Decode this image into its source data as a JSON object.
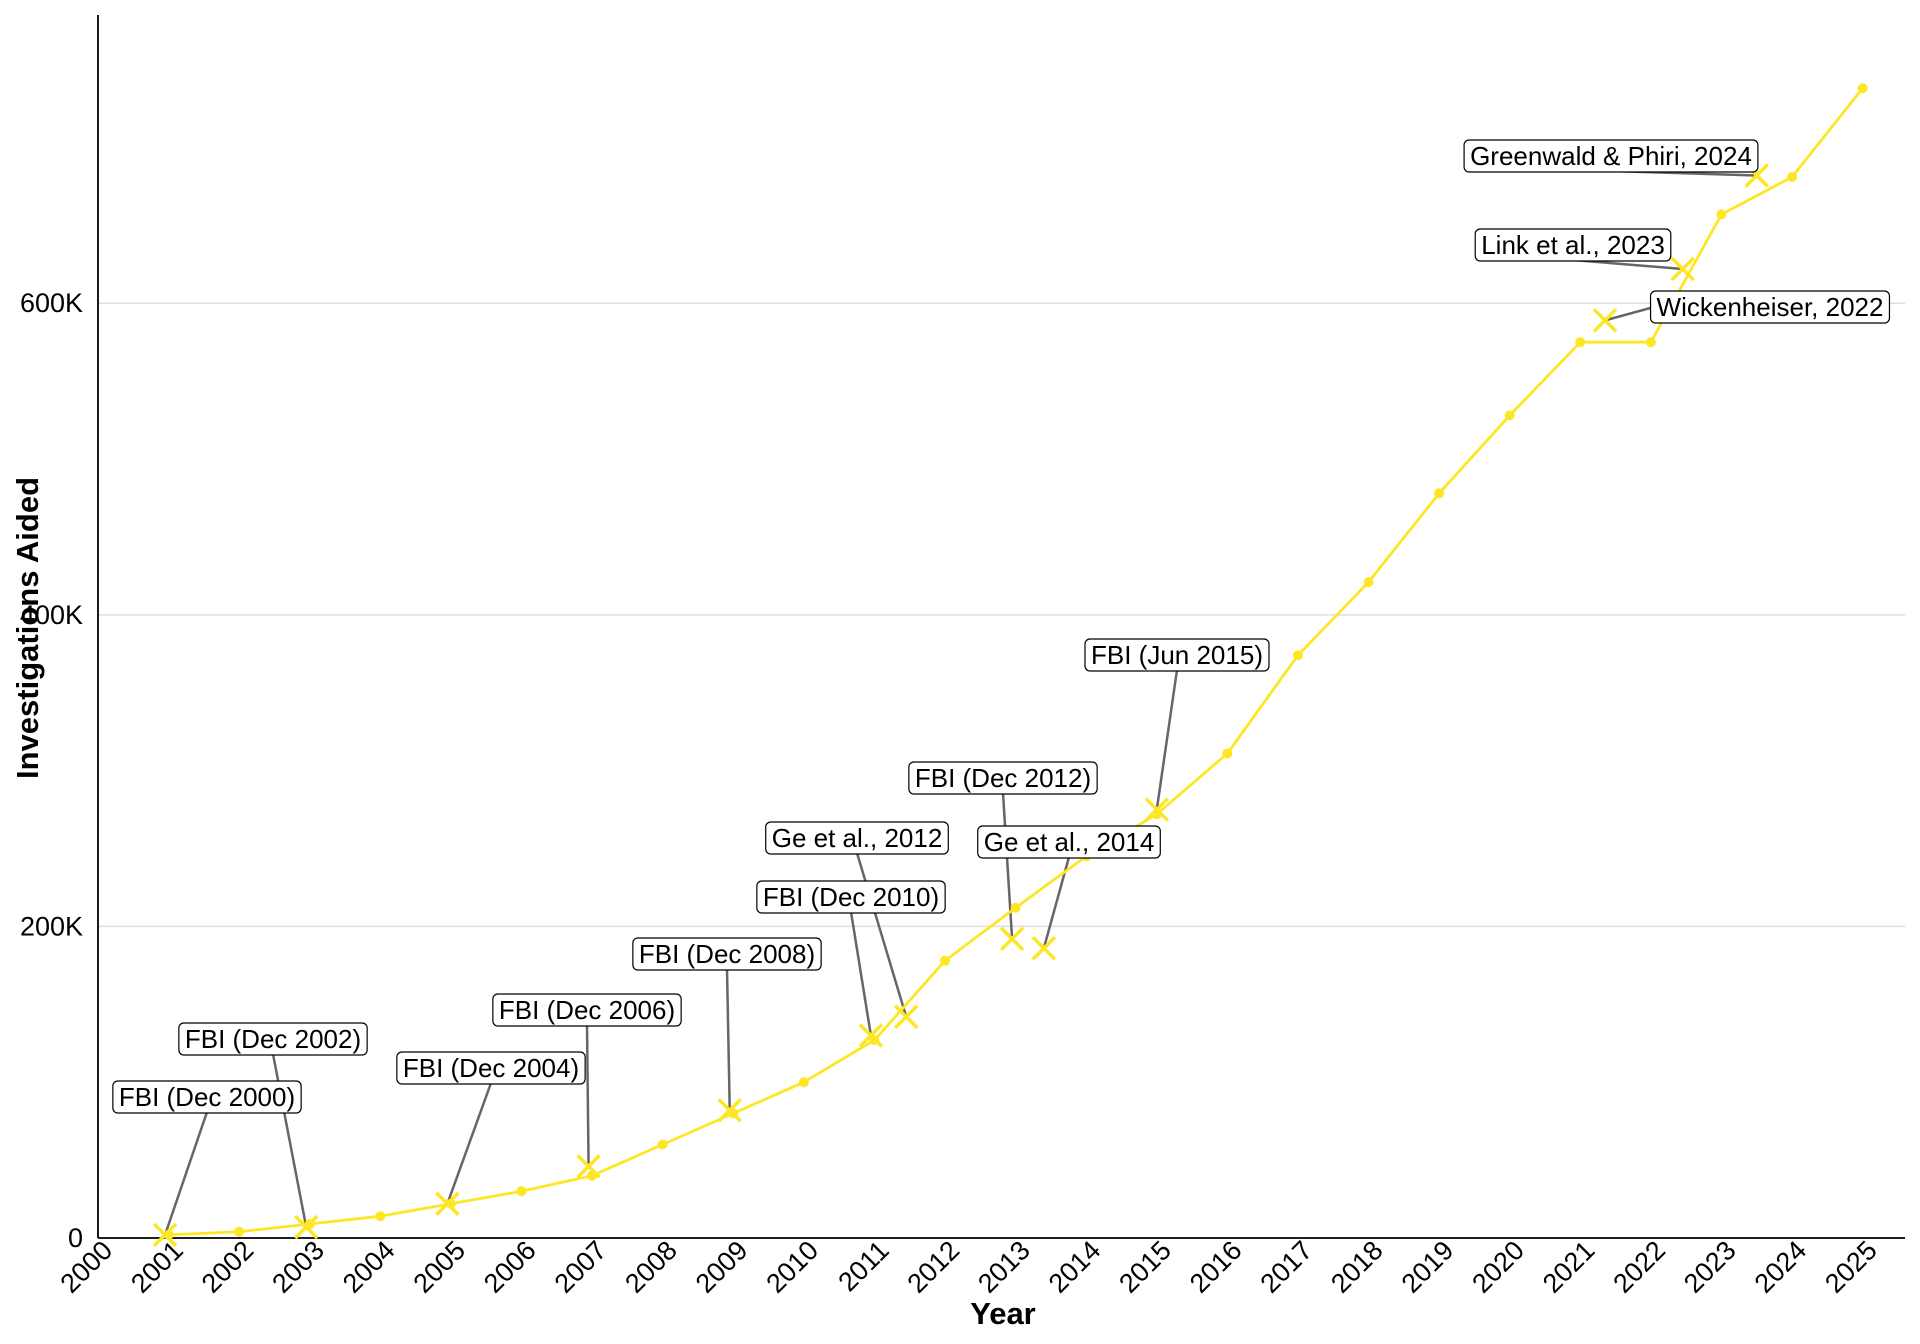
{
  "chart_data": {
    "type": "line",
    "xlabel": "Year",
    "ylabel": "Investigations Aided",
    "xlim": [
      2000,
      2025.6
    ],
    "ylim": [
      0,
      785000
    ],
    "x_ticks": [
      2000,
      2001,
      2002,
      2003,
      2004,
      2005,
      2006,
      2007,
      2008,
      2009,
      2010,
      2011,
      2012,
      2013,
      2014,
      2015,
      2016,
      2017,
      2018,
      2019,
      2020,
      2021,
      2022,
      2023,
      2024,
      2025
    ],
    "x_tick_labels": [
      "2000",
      "2001",
      "2002",
      "2003",
      "2004",
      "2005",
      "2006",
      "2007",
      "2008",
      "2009",
      "2010",
      "2011",
      "2012",
      "2013",
      "2014",
      "2015",
      "2016",
      "2017",
      "2018",
      "2019",
      "2020",
      "2021",
      "2022",
      "2023",
      "2024",
      "2025"
    ],
    "y_ticks": [
      0,
      200000,
      400000,
      600000
    ],
    "y_tick_labels": [
      "0",
      "200K",
      "400K",
      "600K"
    ],
    "grid": true,
    "line_color": "#FDE725",
    "leader_color": "#666666",
    "series": [
      {
        "x": [
          2001,
          2002,
          2003,
          2004,
          2005,
          2006,
          2007,
          2008,
          2009,
          2010,
          2011,
          2012,
          2013,
          2014,
          2015,
          2016,
          2017,
          2018,
          2019,
          2020,
          2021,
          2022,
          2023,
          2024,
          2025
        ],
        "values": [
          2000,
          4000,
          9000,
          14000,
          22000,
          30000,
          40000,
          60000,
          80000,
          100000,
          127000,
          178000,
          212000,
          245000,
          272000,
          311000,
          374000,
          421000,
          478000,
          528000,
          575000,
          575000,
          657000,
          681000,
          738000
        ]
      }
    ],
    "annotations": [
      {
        "label": "FBI (Dec 2000)",
        "x": 2000.95,
        "y": 2000
      },
      {
        "label": "FBI (Dec 2002)",
        "x": 2002.95,
        "y": 7000
      },
      {
        "label": "FBI (Dec 2004)",
        "x": 2004.95,
        "y": 22000
      },
      {
        "label": "FBI (Dec 2006)",
        "x": 2006.95,
        "y": 46000
      },
      {
        "label": "FBI (Dec 2008)",
        "x": 2008.95,
        "y": 82000
      },
      {
        "label": "FBI (Dec 2010)",
        "x": 2010.95,
        "y": 130000
      },
      {
        "label": "Ge et al., 2012",
        "x": 2011.45,
        "y": 142000
      },
      {
        "label": "FBI (Dec 2012)",
        "x": 2012.95,
        "y": 192000
      },
      {
        "label": "Ge et al., 2014",
        "x": 2013.4,
        "y": 186000
      },
      {
        "label": "FBI (Jun 2015)",
        "x": 2015.0,
        "y": 275000
      },
      {
        "label": "Wickenheiser, 2022",
        "x": 2021.35,
        "y": 589000
      },
      {
        "label": "Link et al., 2023",
        "x": 2022.45,
        "y": 622000
      },
      {
        "label": "Greenwald & Phiri, 2024",
        "x": 2023.5,
        "y": 682000
      }
    ]
  }
}
